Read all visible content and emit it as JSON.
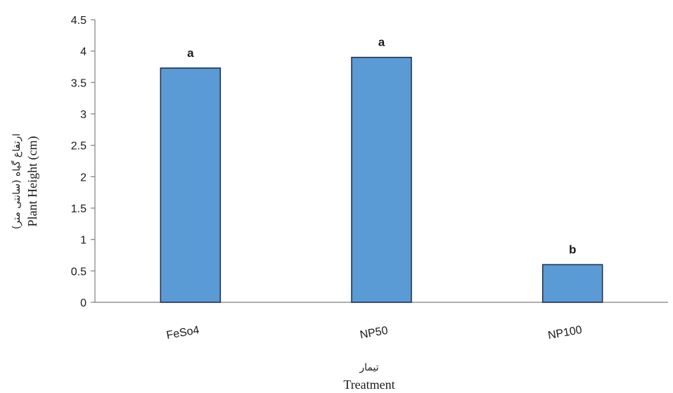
{
  "chart_data": {
    "type": "bar",
    "categories": [
      "FeSo4",
      "NP50",
      "NP100"
    ],
    "values": [
      3.73,
      3.9,
      0.6
    ],
    "significance_letters": [
      "a",
      "a",
      "b"
    ],
    "xlabel": "تیمار",
    "xlabel_en": "Treatment",
    "ylabel": "ارتفاع گیاه (سانتی متر)",
    "ylabel_en": "Plant Height (cm)",
    "ylim": [
      0,
      4.5
    ],
    "yticks": [
      "0",
      "0.5",
      "1",
      "1.5",
      "2",
      "2.5",
      "3",
      "3.5",
      "4",
      "4.5"
    ],
    "grid": false,
    "colors": {
      "bar": "#5b9bd5",
      "bar_edge": "#1f2a44",
      "axis": "#7f7f7f"
    }
  }
}
